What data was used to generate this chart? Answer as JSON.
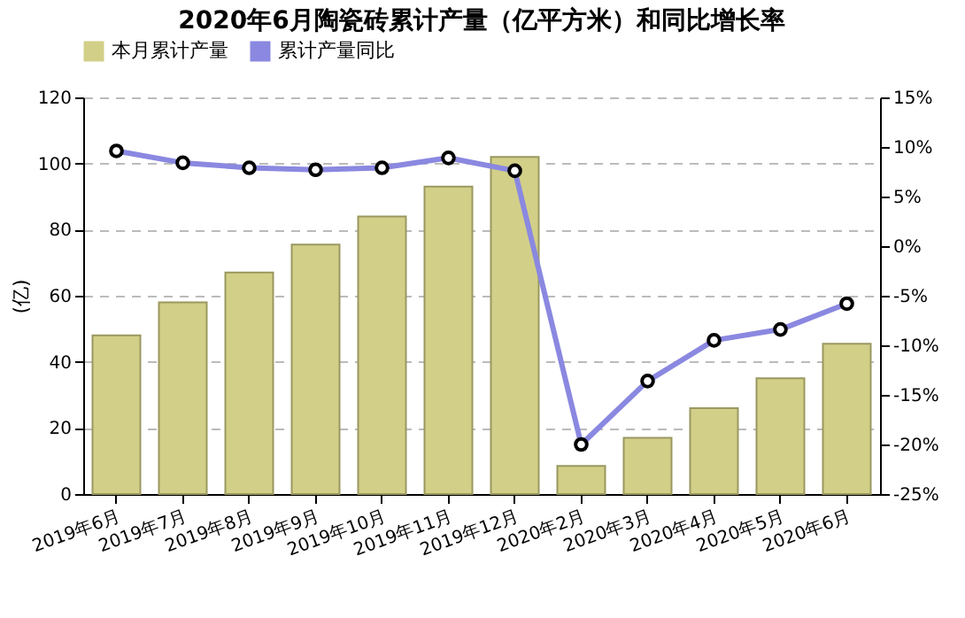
{
  "chart_data": {
    "type": "bar",
    "title": "2020年6月陶瓷砖累计产量（亿平方米）和同比增长率",
    "ylabel": "(亿)",
    "categories": [
      "2019年6月",
      "2019年7月",
      "2019年8月",
      "2019年9月",
      "2019年10月",
      "2019年11月",
      "2019年12月",
      "2020年2月",
      "2020年3月",
      "2020年4月",
      "2020年5月",
      "2020年6月"
    ],
    "series": [
      {
        "name": "本月累计产量",
        "color": "#d2cf88",
        "values": [
          48,
          58,
          67,
          75.5,
          84,
          93,
          102,
          8.5,
          17,
          26,
          35,
          45.5
        ]
      },
      {
        "name": "累计产量同比",
        "type": "line",
        "axis": "y2",
        "color": "#8a88e0",
        "values": [
          9.6,
          8.4,
          7.9,
          7.7,
          7.9,
          8.9,
          7.6,
          -20,
          -13.6,
          -9.5,
          -8.4,
          -5.8
        ]
      }
    ],
    "ylim": [
      0,
      120
    ],
    "yticks": [
      0,
      20,
      40,
      60,
      80,
      100,
      120
    ],
    "y2lim": [
      -25,
      15
    ],
    "y2ticks": [
      {
        "value": -25,
        "label": "-25%"
      },
      {
        "value": -20,
        "label": "-20%"
      },
      {
        "value": -15,
        "label": "-15%"
      },
      {
        "value": -10,
        "label": "-10%"
      },
      {
        "value": -5,
        "label": "-5%"
      },
      {
        "value": 0,
        "label": "0%"
      },
      {
        "value": 5,
        "label": "5%"
      },
      {
        "value": 10,
        "label": "10%"
      },
      {
        "value": 15,
        "label": "15%"
      }
    ],
    "grid": "y",
    "legend": "top",
    "marker": "circle",
    "line_style": "solid"
  }
}
